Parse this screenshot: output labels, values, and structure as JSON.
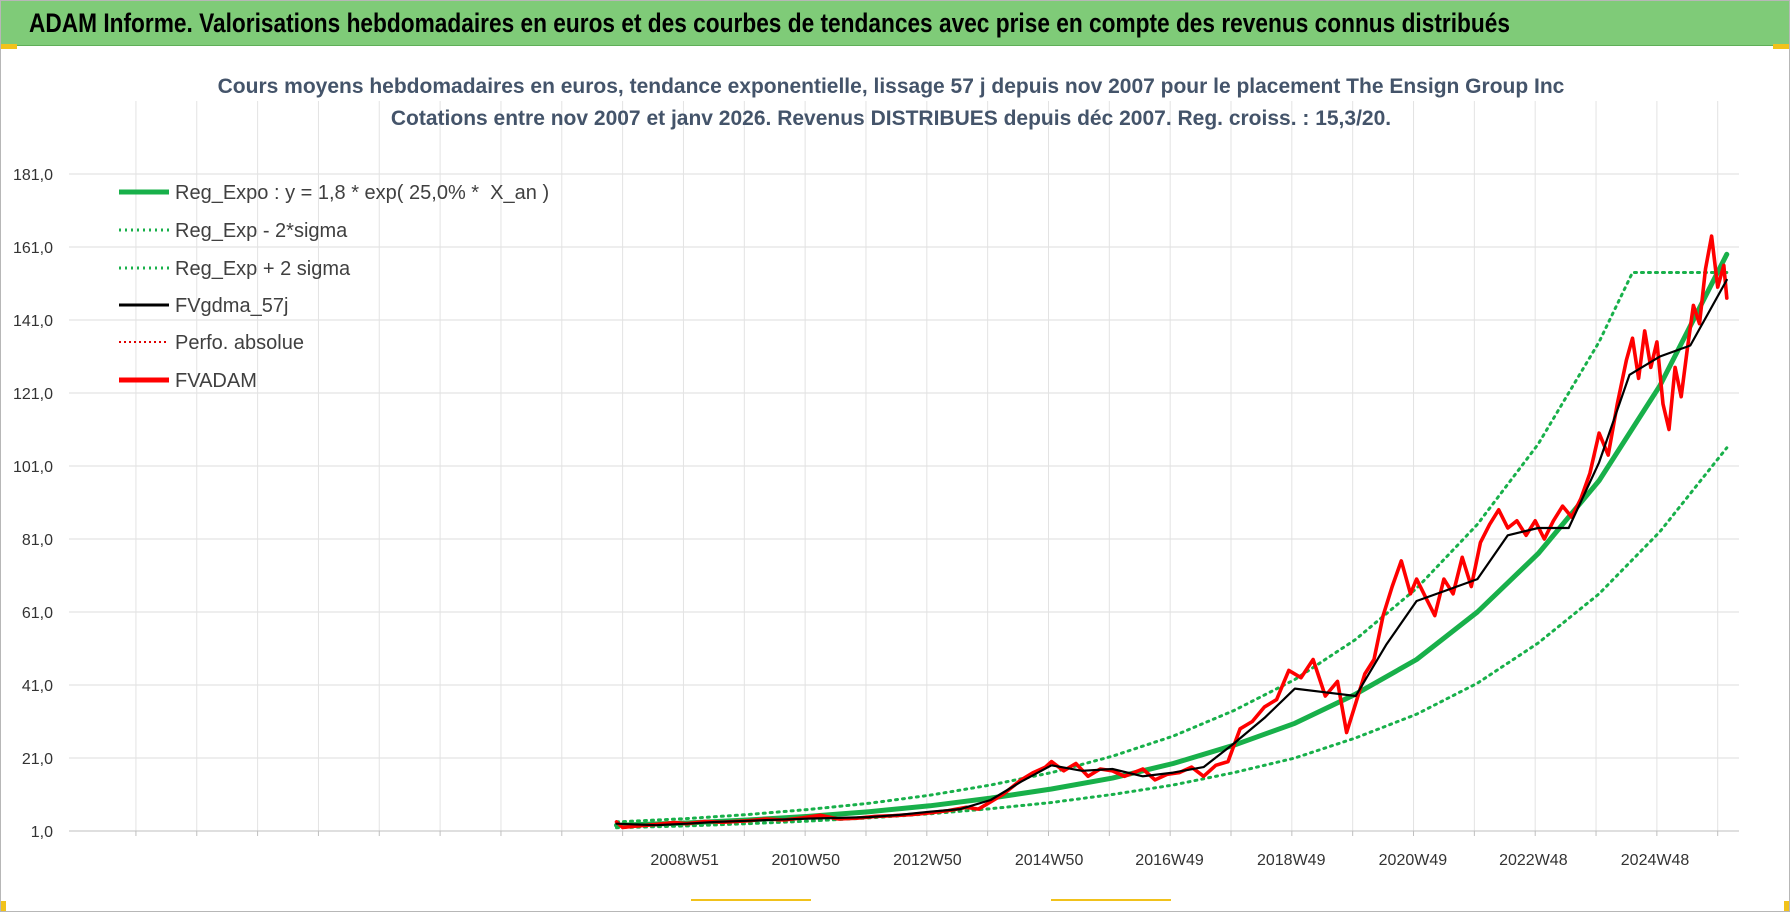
{
  "banner": {
    "title": "ADAM Informe. Valorisations hebdomadaires en euros et des courbes de tendances avec prise en compte des revenus connus distribués"
  },
  "colors": {
    "banner_bg": "#7fcb78",
    "reg_expo": "#18b04a",
    "sigma_bands": "#18b04a",
    "fvgdma": "#000000",
    "perfo": "#e00000",
    "fvadam": "#ff0000",
    "grid": "#dcdcdc",
    "title": "#44546a"
  },
  "chart_data": {
    "type": "line",
    "title": [
      "Cours moyens hebdomadaires en euros, tendance exponentielle, lissage 57 j depuis nov 2007 pour le placement The Ensign Group Inc",
      "Cotations entre nov 2007 et janv 2026. Revenus DISTRIBUES depuis déc 2007. Reg. croiss. : 15,3/20."
    ],
    "xlabel": "",
    "ylabel": "",
    "ylim": [
      1.0,
      201.0
    ],
    "y_ticks": [
      "181,0",
      "161,0",
      "141,0",
      "121,0",
      "101,0",
      "81,0",
      "61,0",
      "41,0",
      "21,0",
      "1,0"
    ],
    "y_tick_values": [
      181,
      161,
      141,
      121,
      101,
      81,
      61,
      41,
      21,
      1
    ],
    "x_range": [
      1998.85,
      2026.3
    ],
    "x_ticks": [
      {
        "label": "2008W51",
        "value": 2008.97
      },
      {
        "label": "2010W50",
        "value": 2010.96
      },
      {
        "label": "2012W50",
        "value": 2012.96
      },
      {
        "label": "2014W50",
        "value": 2014.96
      },
      {
        "label": "2016W49",
        "value": 2016.94
      },
      {
        "label": "2018W49",
        "value": 2018.94
      },
      {
        "label": "2020W49",
        "value": 2020.94
      },
      {
        "label": "2022W48",
        "value": 2022.92
      },
      {
        "label": "2024W48",
        "value": 2024.92
      }
    ],
    "grid": true,
    "legend_position": "top-left",
    "series": [
      {
        "name": "Reg_Expo : y = 1,8 * exp( 25,0% *  X_an )",
        "style": "solid-thick",
        "x": [
          2007.85,
          2009,
          2010,
          2011,
          2012,
          2013,
          2014,
          2015,
          2016,
          2017,
          2018,
          2019,
          2020,
          2021,
          2022,
          2023,
          2024,
          2025,
          2026.1
        ],
        "values": [
          2.6,
          3.2,
          4.0,
          5.0,
          6.3,
          7.9,
          10.0,
          12.5,
          15.5,
          19.5,
          24.5,
          30.5,
          38.5,
          48.0,
          61.0,
          77.0,
          97.0,
          123.0,
          159.0
        ]
      },
      {
        "name": "Reg_Exp - 2*sigma",
        "style": "dotted",
        "x": [
          2007.85,
          2009,
          2010,
          2011,
          2012,
          2013,
          2014,
          2015,
          2016,
          2017,
          2018,
          2019,
          2020,
          2021,
          2022,
          2023,
          2024,
          2025,
          2026.1
        ],
        "values": [
          1.9,
          2.4,
          3.0,
          3.7,
          4.6,
          5.7,
          7.1,
          8.8,
          11.0,
          13.6,
          17.0,
          21.0,
          26.5,
          33.0,
          41.5,
          52.5,
          66.0,
          83.0,
          106.0
        ]
      },
      {
        "name": "Reg_Exp + 2 sigma",
        "style": "dotted",
        "x": [
          2007.85,
          2009,
          2010,
          2011,
          2012,
          2013,
          2014,
          2015,
          2016,
          2017,
          2018,
          2019,
          2020,
          2021,
          2022,
          2023,
          2024,
          2024.55,
          2026.1
        ],
        "values": [
          3.5,
          4.4,
          5.5,
          6.9,
          8.6,
          10.8,
          13.6,
          17.0,
          21.5,
          27.0,
          34.0,
          42.5,
          53.5,
          67.5,
          85.0,
          107.0,
          135.0,
          154.0,
          154.0
        ]
      },
      {
        "name": "FVgdma_57j",
        "style": "solid-thin",
        "x": [
          2007.85,
          2008.5,
          2009,
          2009.5,
          2010,
          2010.5,
          2011,
          2011.5,
          2012,
          2012.5,
          2013,
          2013.5,
          2014,
          2014.5,
          2015,
          2015.5,
          2016,
          2016.5,
          2017,
          2017.5,
          2018,
          2018.5,
          2019,
          2019.5,
          2020,
          2020.5,
          2021,
          2021.5,
          2022,
          2022.5,
          2023,
          2023.5,
          2024,
          2024.5,
          2025,
          2025.5,
          2026.1
        ],
        "values": [
          3.0,
          2.6,
          3.0,
          3.5,
          3.8,
          4.1,
          4.4,
          4.6,
          4.8,
          5.4,
          6.3,
          7.0,
          9.5,
          14.5,
          19.0,
          17.5,
          18.0,
          16.0,
          17.0,
          18.5,
          25.0,
          32.0,
          40.0,
          39.0,
          38.0,
          52.0,
          64.0,
          67.0,
          70.0,
          82.0,
          84.0,
          84.0,
          102.0,
          126.0,
          131.0,
          134.0,
          152.0
        ]
      },
      {
        "name": "Perfo. absolue",
        "style": "dotted-thin",
        "x": [
          2007.85,
          2008.5,
          2009,
          2009.5,
          2010,
          2010.5,
          2011,
          2011.5,
          2012,
          2012.5,
          2013,
          2013.5,
          2014,
          2014.5,
          2015,
          2015.5,
          2016,
          2016.5,
          2017,
          2017.5,
          2018,
          2018.5,
          2019,
          2019.5,
          2020,
          2020.5,
          2021,
          2021.5,
          2022,
          2022.5,
          2023,
          2023.5,
          2024,
          2024.5,
          2025,
          2025.5,
          2026.1
        ],
        "values": [
          3.0,
          2.6,
          3.0,
          3.5,
          3.8,
          4.1,
          4.4,
          4.6,
          4.8,
          5.4,
          6.3,
          7.0,
          9.5,
          14.5,
          19.0,
          17.5,
          18.0,
          16.0,
          17.0,
          18.5,
          25.0,
          32.0,
          40.0,
          39.0,
          38.0,
          52.0,
          64.0,
          67.0,
          70.0,
          82.0,
          84.0,
          84.0,
          102.0,
          126.0,
          131.0,
          134.0,
          152.0
        ]
      },
      {
        "name": "FVADAM",
        "style": "solid-thick-red",
        "x": [
          2007.85,
          2007.95,
          2008.2,
          2008.5,
          2008.8,
          2009.0,
          2009.3,
          2009.6,
          2010.0,
          2010.3,
          2010.6,
          2010.9,
          2011.2,
          2011.5,
          2011.8,
          2012.1,
          2012.4,
          2012.7,
          2013.0,
          2013.3,
          2013.6,
          2013.8,
          2014.0,
          2014.2,
          2014.5,
          2014.7,
          2014.9,
          2015.0,
          2015.2,
          2015.4,
          2015.6,
          2015.8,
          2016.0,
          2016.2,
          2016.5,
          2016.7,
          2016.9,
          2017.1,
          2017.3,
          2017.5,
          2017.7,
          2017.9,
          2018.1,
          2018.3,
          2018.5,
          2018.7,
          2018.9,
          2019.1,
          2019.3,
          2019.5,
          2019.7,
          2019.85,
          2020.0,
          2020.15,
          2020.3,
          2020.45,
          2020.6,
          2020.75,
          2020.9,
          2021.0,
          2021.15,
          2021.3,
          2021.45,
          2021.6,
          2021.75,
          2021.9,
          2022.05,
          2022.2,
          2022.35,
          2022.5,
          2022.65,
          2022.8,
          2022.95,
          2023.1,
          2023.25,
          2023.4,
          2023.55,
          2023.7,
          2023.85,
          2024.0,
          2024.15,
          2024.3,
          2024.45,
          2024.55,
          2024.65,
          2024.75,
          2024.85,
          2024.95,
          2025.05,
          2025.15,
          2025.25,
          2025.35,
          2025.45,
          2025.55,
          2025.65,
          2025.75,
          2025.85,
          2025.95,
          2026.05,
          2026.1
        ],
        "values": [
          3.5,
          2.0,
          2.4,
          2.8,
          3.3,
          3.0,
          3.6,
          3.4,
          3.8,
          4.3,
          4.0,
          4.6,
          5.3,
          4.3,
          4.5,
          5.0,
          5.2,
          5.5,
          6.0,
          6.6,
          7.5,
          7.0,
          9.0,
          11.0,
          15.0,
          17.0,
          18.5,
          20.0,
          17.5,
          19.5,
          16.0,
          18.0,
          17.5,
          16.0,
          18.0,
          15.0,
          16.5,
          17.0,
          18.5,
          16.0,
          19.0,
          20.0,
          29.0,
          31.0,
          35.0,
          37.0,
          45.0,
          43.0,
          48.0,
          38.0,
          42.0,
          28.0,
          36.0,
          44.0,
          48.0,
          60.0,
          68.0,
          75.0,
          66.0,
          70.0,
          65.0,
          60.0,
          70.0,
          66.0,
          76.0,
          68.0,
          80.0,
          85.0,
          89.0,
          84.0,
          86.0,
          82.0,
          86.0,
          81.0,
          86.0,
          90.0,
          87.0,
          92.0,
          99.0,
          110.0,
          104.0,
          118.0,
          130.0,
          136.0,
          125.0,
          138.0,
          128.0,
          135.0,
          118.0,
          111.0,
          128.0,
          120.0,
          133.0,
          145.0,
          140.0,
          155.0,
          164.0,
          150.0,
          156.0,
          147.0
        ]
      }
    ]
  }
}
